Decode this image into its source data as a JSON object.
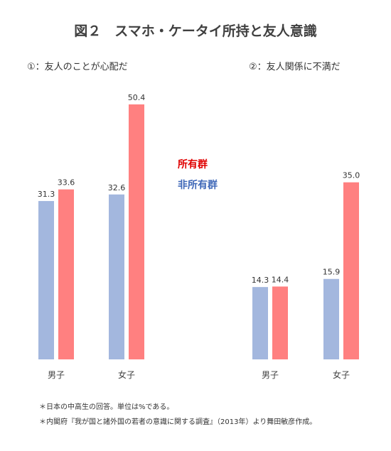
{
  "chart_data": [
    {
      "type": "bar",
      "title": "図２　スマホ・ケータイ所持と友人意識",
      "subtitle": "①：友人のことが心配だ",
      "categories": [
        "男子",
        "女子"
      ],
      "series": [
        {
          "name": "非所有群",
          "color": "#A3B7DE",
          "values": [
            31.3,
            32.6
          ]
        },
        {
          "name": "所有群",
          "color": "#FF8080",
          "values": [
            33.6,
            50.4
          ]
        }
      ],
      "ylim": [
        0,
        50.4
      ],
      "grid": false,
      "legend": "center"
    },
    {
      "type": "bar",
      "subtitle": "②：友人関係に不満だ",
      "categories": [
        "男子",
        "女子"
      ],
      "series": [
        {
          "name": "非所有群",
          "color": "#A3B7DE",
          "values": [
            14.3,
            15.9
          ]
        },
        {
          "name": "所有群",
          "color": "#FF8080",
          "values": [
            14.4,
            35.0
          ]
        }
      ],
      "ylim": [
        0,
        50.4
      ],
      "grid": false
    }
  ],
  "legend": {
    "owners": {
      "label": "所有群",
      "color": "#E00000"
    },
    "non_owners": {
      "label": "非所有群",
      "color": "#3F68B8"
    }
  },
  "notes": [
    "＊日本の中高生の回答。単位は%である。",
    "＊内閣府『我が国と諸外国の若者の意識に関する調査』（2013年）より舞田敏彦作成。"
  ]
}
